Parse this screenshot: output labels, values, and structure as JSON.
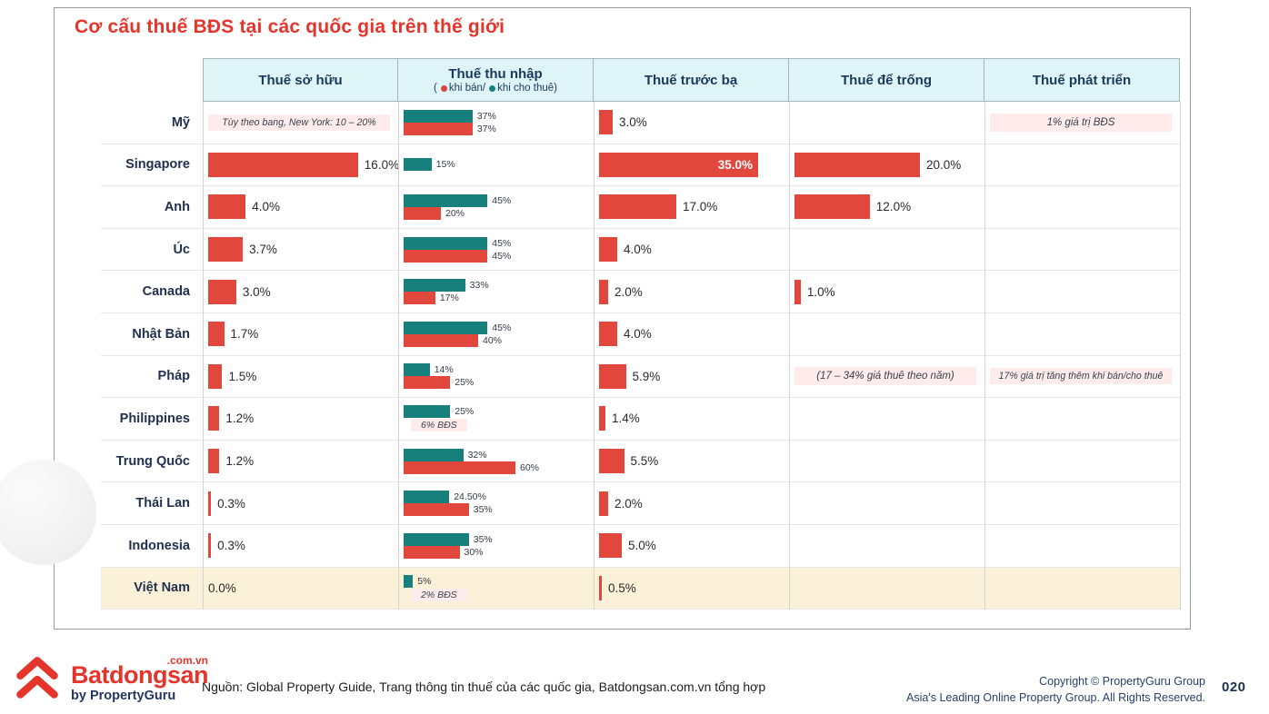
{
  "page": {
    "page_number": "020"
  },
  "footer": {
    "source": "Nguồn: Global Property Guide, Trang thông tin thuế của các quốc gia, Batdongsan.com.vn tổng hợp",
    "copyright_line1": "Copyright © PropertyGuru Group",
    "copyright_line2": "Asia's Leading Online Property Group. All Rights Reserved.",
    "logo": {
      "brand": "Batdongsan",
      "domain": ".com.vn",
      "byline": "by PropertyGuru"
    }
  },
  "chart_data": {
    "type": "table",
    "title": "Cơ cấu thuế BĐS tại các quốc gia trên thế giới",
    "columns": [
      "Thuế sở hữu",
      "Thuế thu nhập",
      "Thuế trước bạ",
      "Thuế để trống",
      "Thuế phát triển"
    ],
    "income_legend": {
      "open": "(",
      "sell": "khi bán/",
      "rent": "khi cho thuê",
      "close": ")"
    },
    "legend_note": "red = khi bán (when selling), teal = khi cho thuê (when renting)",
    "colors": {
      "bar_red": "#e2473d",
      "bar_teal": "#17807d",
      "header_bg": "#dff4f6",
      "header_text": "#1a3a5c",
      "note_bg": "#fdeceb",
      "highlight_row_bg": "#fbf0d8",
      "title_red": "#e5352b"
    },
    "bar_scales": {
      "so_huu": 10.3,
      "thu_nhap": 2.05,
      "truoc_ba": 5.0,
      "de_trong": 6.9
    },
    "rows": [
      {
        "name": "Mỹ",
        "so_huu": {
          "note": "Tùy theo bang, New York: 10 – 20%"
        },
        "thu_nhap": {
          "rent": {
            "v": 37,
            "l": "37%"
          },
          "sell": {
            "v": 37,
            "l": "37%"
          }
        },
        "truoc_ba": {
          "v": 3.0,
          "l": "3.0%"
        },
        "de_trong": null,
        "phat_trien": {
          "note": "1% giá trị BĐS"
        }
      },
      {
        "name": "Singapore",
        "so_huu": {
          "v": 16.0,
          "l": "16.0%"
        },
        "thu_nhap": {
          "rent": {
            "v": 15,
            "l": "15%"
          }
        },
        "truoc_ba": {
          "v": 35.0,
          "l": "35.0%",
          "inside": true
        },
        "de_trong": {
          "v": 20.0,
          "l": "20.0%"
        },
        "phat_trien": null
      },
      {
        "name": "Anh",
        "so_huu": {
          "v": 4.0,
          "l": "4.0%"
        },
        "thu_nhap": {
          "rent": {
            "v": 45,
            "l": "45%"
          },
          "sell": {
            "v": 20,
            "l": "20%"
          }
        },
        "truoc_ba": {
          "v": 17.0,
          "l": "17.0%"
        },
        "de_trong": {
          "v": 12.0,
          "l": "12.0%"
        },
        "phat_trien": null
      },
      {
        "name": "Úc",
        "so_huu": {
          "v": 3.7,
          "l": "3.7%"
        },
        "thu_nhap": {
          "rent": {
            "v": 45,
            "l": "45%"
          },
          "sell": {
            "v": 45,
            "l": "45%"
          }
        },
        "truoc_ba": {
          "v": 4.0,
          "l": "4.0%"
        },
        "de_trong": null,
        "phat_trien": null
      },
      {
        "name": "Canada",
        "so_huu": {
          "v": 3.0,
          "l": "3.0%"
        },
        "thu_nhap": {
          "rent": {
            "v": 33,
            "l": "33%"
          },
          "sell": {
            "v": 17,
            "l": "17%"
          }
        },
        "truoc_ba": {
          "v": 2.0,
          "l": "2.0%"
        },
        "de_trong": {
          "v": 1.0,
          "l": "1.0%"
        },
        "phat_trien": null
      },
      {
        "name": "Nhật Bản",
        "so_huu": {
          "v": 1.7,
          "l": "1.7%"
        },
        "thu_nhap": {
          "rent": {
            "v": 45,
            "l": "45%"
          },
          "sell": {
            "v": 40,
            "l": "40%"
          }
        },
        "truoc_ba": {
          "v": 4.0,
          "l": "4.0%"
        },
        "de_trong": null,
        "phat_trien": null
      },
      {
        "name": "Pháp",
        "so_huu": {
          "v": 1.5,
          "l": "1.5%"
        },
        "thu_nhap": {
          "rent": {
            "v": 14,
            "l": "14%"
          },
          "sell": {
            "v": 25,
            "l": "25%"
          }
        },
        "truoc_ba": {
          "v": 5.9,
          "l": "5.9%"
        },
        "de_trong": {
          "note": "(17 – 34% giá thuê theo năm)"
        },
        "phat_trien": {
          "note": "17% giá trị tăng thêm khi bán/cho thuê"
        }
      },
      {
        "name": "Philippines",
        "so_huu": {
          "v": 1.2,
          "l": "1.2%"
        },
        "thu_nhap": {
          "rent": {
            "v": 25,
            "l": "25%"
          },
          "note": "6% BĐS"
        },
        "truoc_ba": {
          "v": 1.4,
          "l": "1.4%"
        },
        "de_trong": null,
        "phat_trien": null
      },
      {
        "name": "Trung Quốc",
        "so_huu": {
          "v": 1.2,
          "l": "1.2%"
        },
        "thu_nhap": {
          "rent": {
            "v": 32,
            "l": "32%"
          },
          "sell": {
            "v": 60,
            "l": "60%"
          }
        },
        "truoc_ba": {
          "v": 5.5,
          "l": "5.5%"
        },
        "de_trong": null,
        "phat_trien": null
      },
      {
        "name": "Thái Lan",
        "so_huu": {
          "v": 0.3,
          "l": "0.3%"
        },
        "thu_nhap": {
          "rent": {
            "v": 24.5,
            "l": "24.50%"
          },
          "sell": {
            "v": 35,
            "l": "35%"
          }
        },
        "truoc_ba": {
          "v": 2.0,
          "l": "2.0%"
        },
        "de_trong": null,
        "phat_trien": null
      },
      {
        "name": "Indonesia",
        "so_huu": {
          "v": 0.3,
          "l": "0.3%"
        },
        "thu_nhap": {
          "rent": {
            "v": 35,
            "l": "35%"
          },
          "sell": {
            "v": 30,
            "l": "30%"
          }
        },
        "truoc_ba": {
          "v": 5.0,
          "l": "5.0%"
        },
        "de_trong": null,
        "phat_trien": null
      },
      {
        "name": "Việt Nam",
        "highlight": true,
        "so_huu": {
          "text": "0.0%"
        },
        "thu_nhap": {
          "rent": {
            "v": 5,
            "l": "5%"
          },
          "note": "2% BĐS"
        },
        "truoc_ba": {
          "v": 0.5,
          "l": "0.5%"
        },
        "de_trong": null,
        "phat_trien": null
      }
    ]
  }
}
